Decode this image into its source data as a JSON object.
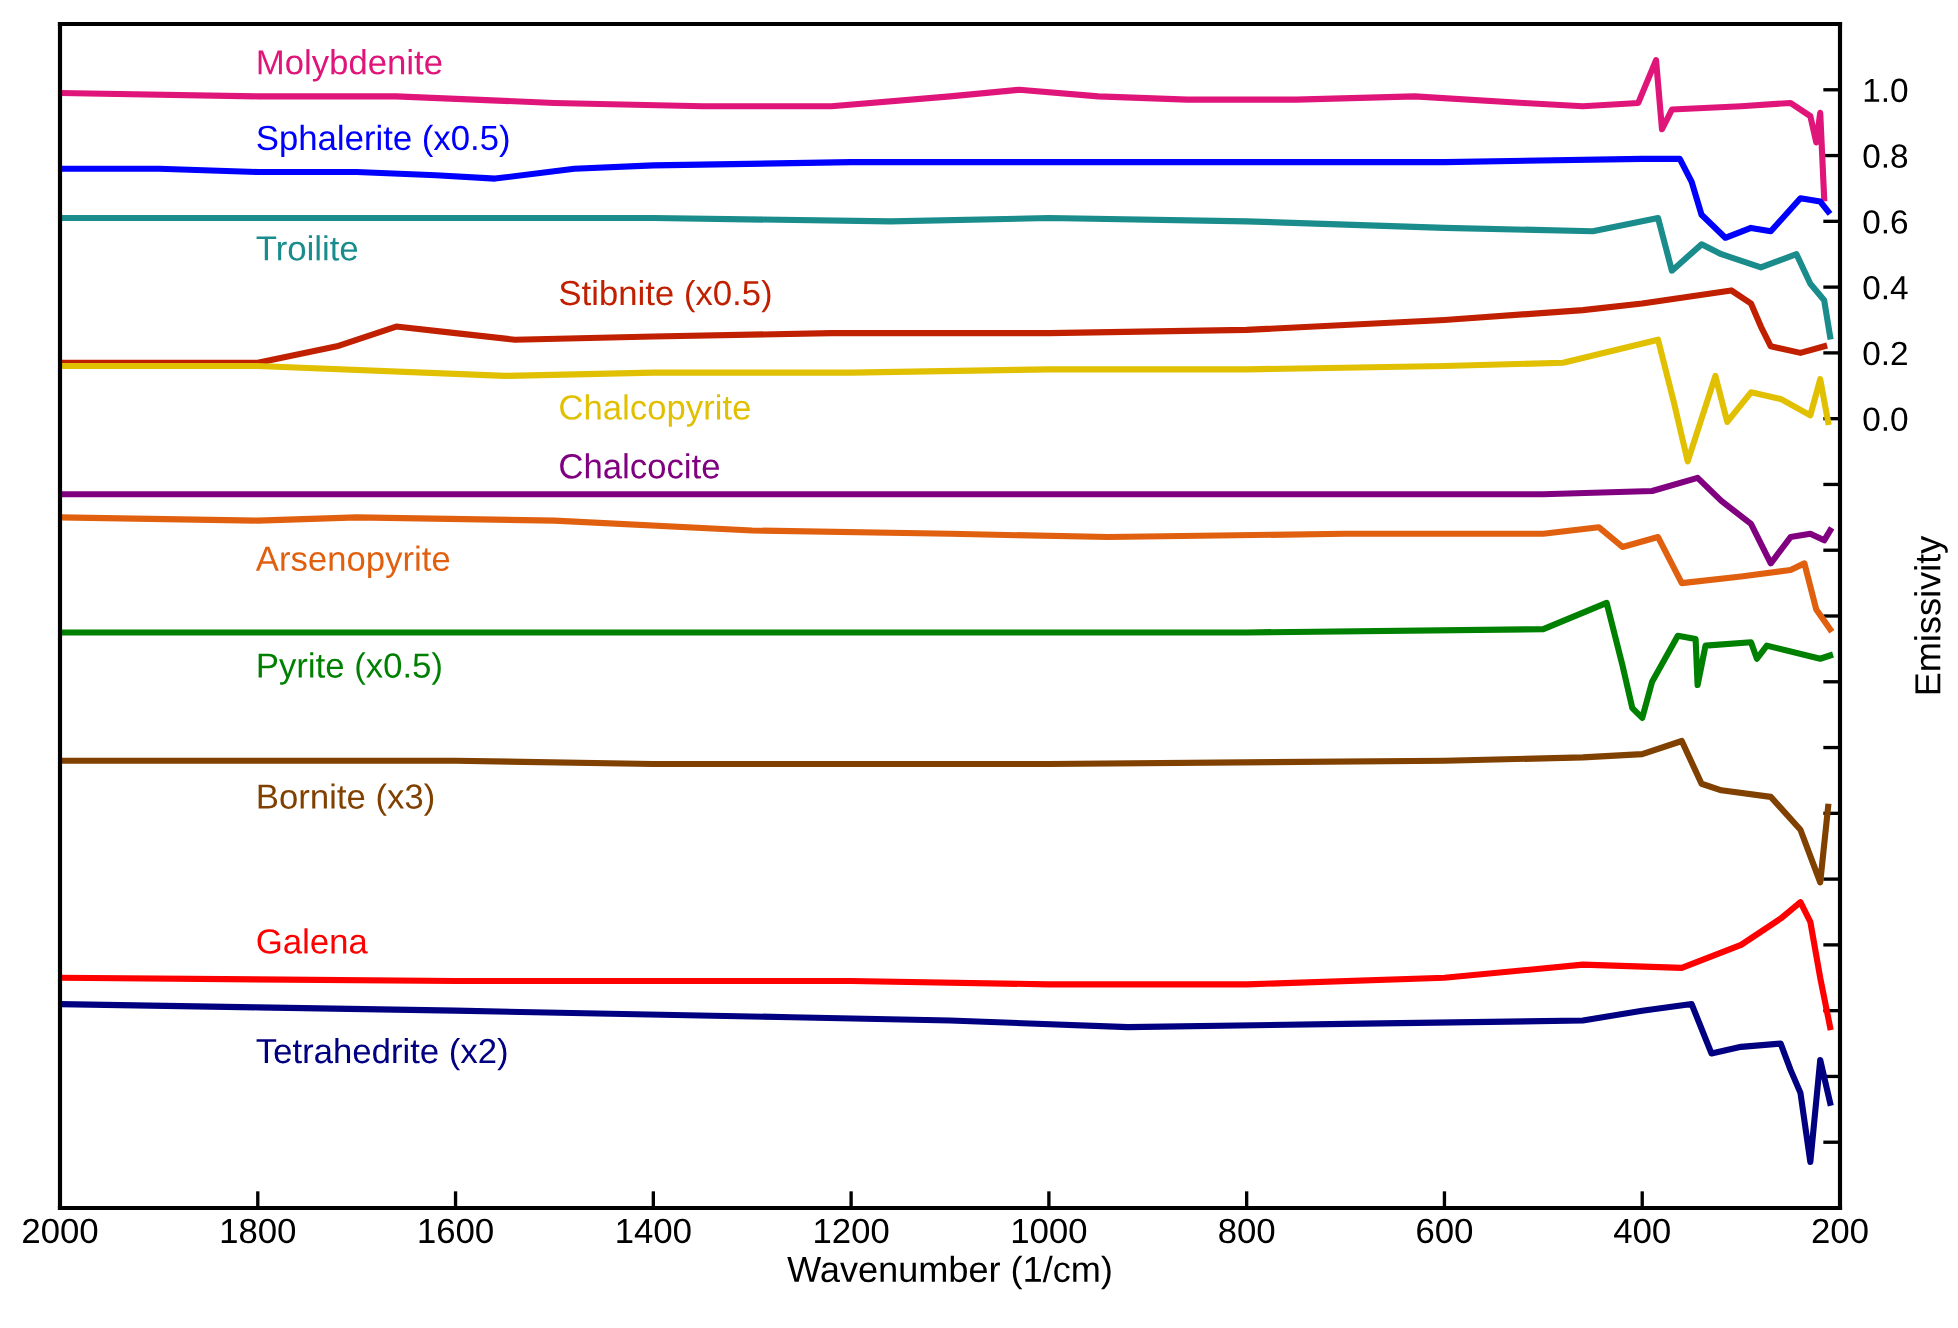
{
  "chart_data": {
    "type": "line",
    "xlabel": "Wavenumber (1/cm)",
    "ylabel": "Emissivity",
    "xlim": [
      2000,
      200
    ],
    "xticks": [
      2000,
      1800,
      1600,
      1400,
      1200,
      1000,
      800,
      600,
      400,
      200
    ],
    "ylim": [
      -2.4,
      1.2
    ],
    "yticks": [
      {
        "value": 1.0,
        "label": "1.0"
      },
      {
        "value": 0.8,
        "label": "0.8"
      },
      {
        "value": 0.6,
        "label": "0.6"
      },
      {
        "value": 0.4,
        "label": "0.4"
      },
      {
        "value": 0.2,
        "label": "0.2"
      },
      {
        "value": 0.0,
        "label": "0.0"
      },
      {
        "value": -0.2,
        "label": null
      },
      {
        "value": -0.4,
        "label": null
      },
      {
        "value": -0.6,
        "label": null
      },
      {
        "value": -0.8,
        "label": null
      },
      {
        "value": -1.0,
        "label": null
      },
      {
        "value": -1.2,
        "label": null
      },
      {
        "value": -1.4,
        "label": null
      },
      {
        "value": -1.6,
        "label": null
      },
      {
        "value": -1.8,
        "label": null
      },
      {
        "value": -2.0,
        "label": null
      },
      {
        "value": -2.2,
        "label": null
      }
    ],
    "grid": false,
    "legend": false,
    "line_style": "solid",
    "marker": "none",
    "series": [
      {
        "name": "Molybdenite",
        "color": "#e0157a",
        "x": [
          2000,
          1800,
          1660,
          1500,
          1350,
          1220,
          1100,
          1030,
          950,
          860,
          750,
          630,
          520,
          460,
          404,
          386,
          380,
          370,
          300,
          250,
          230,
          224,
          220,
          216
        ],
        "values": [
          0.99,
          0.98,
          0.98,
          0.96,
          0.95,
          0.95,
          0.98,
          1.0,
          0.98,
          0.97,
          0.97,
          0.98,
          0.96,
          0.95,
          0.96,
          1.09,
          0.88,
          0.94,
          0.95,
          0.96,
          0.92,
          0.84,
          0.93,
          0.67
        ]
      },
      {
        "name": "Sphalerite (x0.5)",
        "color": "#0000ff",
        "x": [
          2000,
          1900,
          1800,
          1700,
          1620,
          1560,
          1480,
          1400,
          1200,
          1000,
          800,
          600,
          400,
          362,
          350,
          340,
          316,
          290,
          270,
          240,
          220,
          212
        ],
        "values": [
          0.76,
          0.76,
          0.75,
          0.75,
          0.74,
          0.73,
          0.76,
          0.77,
          0.78,
          0.78,
          0.78,
          0.78,
          0.79,
          0.79,
          0.72,
          0.62,
          0.55,
          0.58,
          0.57,
          0.67,
          0.66,
          0.63
        ]
      },
      {
        "name": "Troilite",
        "color": "#1a8c8c",
        "x": [
          2000,
          1800,
          1600,
          1400,
          1160,
          1000,
          800,
          600,
          450,
          384,
          370,
          340,
          320,
          280,
          244,
          230,
          216,
          210
        ],
        "values": [
          0.61,
          0.61,
          0.61,
          0.61,
          0.6,
          0.61,
          0.6,
          0.58,
          0.57,
          0.61,
          0.45,
          0.53,
          0.5,
          0.46,
          0.5,
          0.41,
          0.36,
          0.25
        ]
      },
      {
        "name": "Stibnite (x0.5)",
        "color": "#c02000",
        "x": [
          2000,
          1800,
          1720,
          1660,
          1600,
          1540,
          1400,
          1220,
          1000,
          800,
          600,
          460,
          400,
          310,
          290,
          280,
          270,
          240,
          216
        ],
        "values": [
          0.17,
          0.17,
          0.22,
          0.28,
          0.26,
          0.24,
          0.25,
          0.26,
          0.26,
          0.27,
          0.3,
          0.33,
          0.35,
          0.39,
          0.35,
          0.28,
          0.22,
          0.2,
          0.22
        ]
      },
      {
        "name": "Chalcopyrite",
        "color": "#e0c000",
        "x": [
          2000,
          1800,
          1550,
          1400,
          1200,
          1000,
          800,
          600,
          480,
          384,
          368,
          354,
          340,
          326,
          314,
          290,
          260,
          230,
          220,
          212
        ],
        "values": [
          0.16,
          0.16,
          0.13,
          0.14,
          0.14,
          0.15,
          0.15,
          0.16,
          0.17,
          0.24,
          0.05,
          -0.13,
          0.0,
          0.13,
          -0.01,
          0.08,
          0.06,
          0.01,
          0.12,
          -0.01
        ]
      },
      {
        "name": "Chalcocite",
        "color": "#800080",
        "x": [
          2000,
          1600,
          1200,
          800,
          500,
          390,
          344,
          320,
          290,
          270,
          250,
          230,
          216,
          210
        ],
        "values": [
          -0.23,
          -0.23,
          -0.23,
          -0.23,
          -0.23,
          -0.22,
          -0.18,
          -0.25,
          -0.32,
          -0.44,
          -0.36,
          -0.35,
          -0.37,
          -0.34
        ]
      },
      {
        "name": "Arsenopyrite",
        "color": "#e06010",
        "x": [
          2000,
          1800,
          1700,
          1500,
          1300,
          1100,
          940,
          700,
          500,
          444,
          420,
          384,
          360,
          300,
          250,
          236,
          224,
          210
        ],
        "values": [
          -0.3,
          -0.31,
          -0.3,
          -0.31,
          -0.34,
          -0.35,
          -0.36,
          -0.35,
          -0.35,
          -0.33,
          -0.39,
          -0.36,
          -0.5,
          -0.48,
          -0.46,
          -0.44,
          -0.58,
          -0.64
        ]
      },
      {
        "name": "Pyrite (x0.5)",
        "color": "#008000",
        "x": [
          2000,
          1600,
          1200,
          800,
          500,
          436,
          420,
          410,
          400,
          390,
          364,
          346,
          344,
          336,
          290,
          284,
          274,
          220,
          210
        ],
        "values": [
          -0.65,
          -0.65,
          -0.65,
          -0.65,
          -0.64,
          -0.56,
          -0.75,
          -0.88,
          -0.91,
          -0.8,
          -0.66,
          -0.67,
          -0.81,
          -0.69,
          -0.68,
          -0.73,
          -0.69,
          -0.73,
          -0.72
        ]
      },
      {
        "name": "Bornite (x3)",
        "color": "#804000",
        "x": [
          2000,
          1800,
          1600,
          1400,
          1000,
          600,
          460,
          400,
          360,
          340,
          320,
          270,
          240,
          230,
          220,
          212
        ],
        "values": [
          -1.04,
          -1.04,
          -1.04,
          -1.05,
          -1.05,
          -1.04,
          -1.03,
          -1.02,
          -0.98,
          -1.11,
          -1.13,
          -1.15,
          -1.25,
          -1.33,
          -1.41,
          -1.18
        ]
      },
      {
        "name": "Galena",
        "color": "#ff0000",
        "x": [
          2000,
          1600,
          1200,
          1000,
          800,
          600,
          460,
          360,
          300,
          260,
          240,
          230,
          220,
          210
        ],
        "values": [
          -1.7,
          -1.71,
          -1.71,
          -1.72,
          -1.72,
          -1.7,
          -1.66,
          -1.67,
          -1.6,
          -1.52,
          -1.47,
          -1.53,
          -1.7,
          -1.85
        ]
      },
      {
        "name": "Tetrahedrite (x2)",
        "color": "#000080",
        "x": [
          2000,
          1800,
          1600,
          1260,
          1100,
          920,
          700,
          460,
          400,
          350,
          330,
          300,
          260,
          250,
          240,
          230,
          220,
          210
        ],
        "values": [
          -1.78,
          -1.79,
          -1.8,
          -1.82,
          -1.83,
          -1.85,
          -1.84,
          -1.83,
          -1.8,
          -1.78,
          -1.93,
          -1.91,
          -1.9,
          -1.98,
          -2.05,
          -2.26,
          -1.95,
          -2.08
        ]
      }
    ]
  }
}
